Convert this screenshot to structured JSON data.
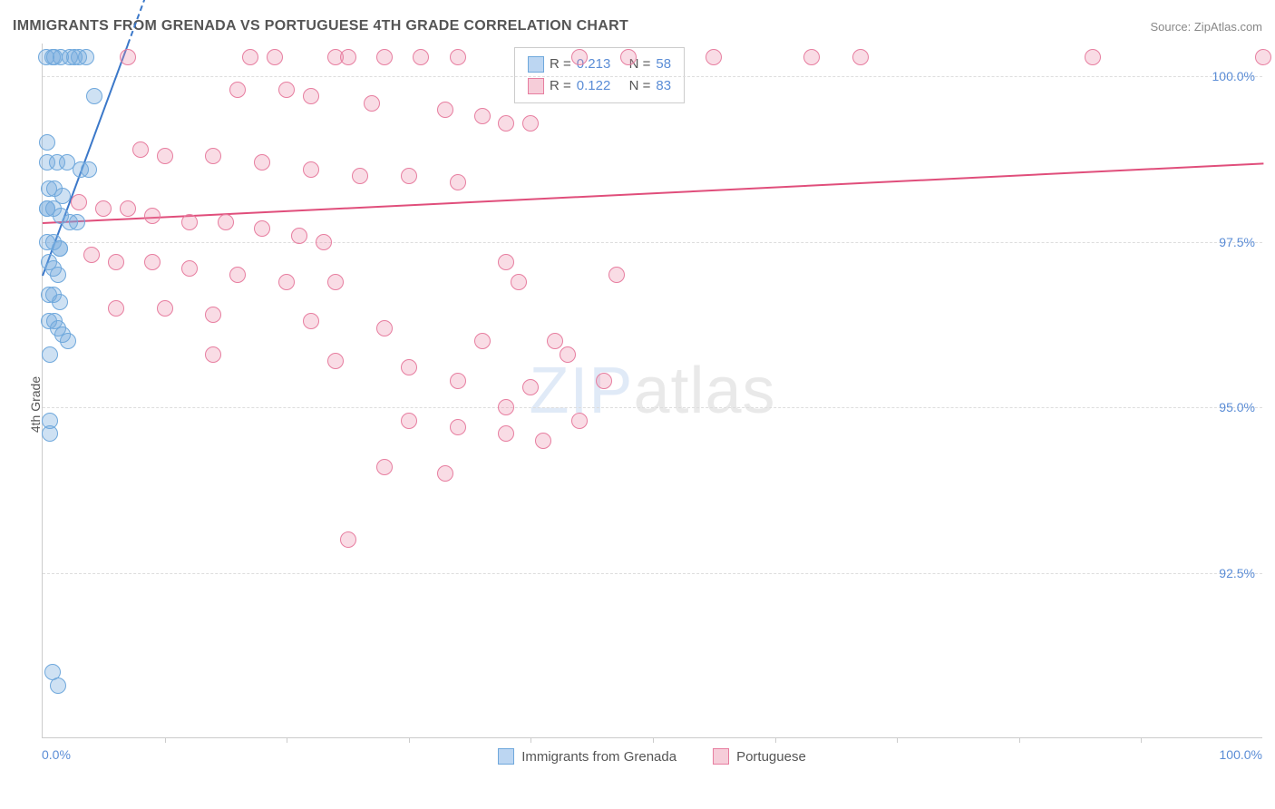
{
  "header": {
    "title": "IMMIGRANTS FROM GRENADA VS PORTUGUESE 4TH GRADE CORRELATION CHART",
    "source": "Source: ZipAtlas.com"
  },
  "chart": {
    "type": "scatter",
    "ylabel": "4th Grade",
    "xlim": [
      0,
      100
    ],
    "ylim": [
      90,
      100.5
    ],
    "yticks": [
      {
        "v": 92.5,
        "label": "92.5%"
      },
      {
        "v": 95.0,
        "label": "95.0%"
      },
      {
        "v": 97.5,
        "label": "97.5%"
      },
      {
        "v": 100.0,
        "label": "100.0%"
      }
    ],
    "xticks_minor": [
      10,
      20,
      30,
      40,
      50,
      60,
      70,
      80,
      90
    ],
    "xtick_labels": {
      "left": "0.0%",
      "right": "100.0%"
    },
    "grid_color": "#dddddd",
    "axis_color": "#cccccc",
    "background_color": "#ffffff",
    "marker_radius": 9,
    "marker_stroke_width": 1.5,
    "series": [
      {
        "name": "Immigrants from Grenada",
        "color_fill": "rgba(116,169,222,0.35)",
        "color_stroke": "#6fa8dc",
        "swatch_fill": "#bcd6f2",
        "swatch_stroke": "#6fa8dc",
        "R": "0.213",
        "N": "58",
        "trend": {
          "x0": 0,
          "y0": 97.0,
          "x1": 7,
          "y1": 100.5,
          "color": "#3b78c9",
          "dash_extend": true
        },
        "points": [
          [
            0.3,
            100.3
          ],
          [
            0.8,
            100.3
          ],
          [
            1.5,
            100.3
          ],
          [
            2.2,
            100.3
          ],
          [
            3.0,
            100.3
          ],
          [
            3.6,
            100.3
          ],
          [
            1.0,
            100.3
          ],
          [
            2.6,
            100.3
          ],
          [
            4.2,
            99.7
          ],
          [
            0.4,
            99.0
          ],
          [
            0.4,
            98.7
          ],
          [
            1.2,
            98.7
          ],
          [
            2.0,
            98.7
          ],
          [
            3.1,
            98.6
          ],
          [
            3.8,
            98.6
          ],
          [
            0.5,
            98.3
          ],
          [
            1.0,
            98.3
          ],
          [
            1.6,
            98.2
          ],
          [
            0.4,
            98.0
          ],
          [
            0.4,
            98.0
          ],
          [
            0.9,
            98.0
          ],
          [
            1.5,
            97.9
          ],
          [
            2.2,
            97.8
          ],
          [
            2.8,
            97.8
          ],
          [
            0.4,
            97.5
          ],
          [
            0.9,
            97.5
          ],
          [
            1.4,
            97.4
          ],
          [
            1.4,
            97.4
          ],
          [
            0.5,
            97.2
          ],
          [
            0.9,
            97.1
          ],
          [
            1.3,
            97.0
          ],
          [
            0.5,
            96.7
          ],
          [
            0.9,
            96.7
          ],
          [
            1.4,
            96.6
          ],
          [
            0.5,
            96.3
          ],
          [
            1.0,
            96.3
          ],
          [
            1.3,
            96.2
          ],
          [
            1.6,
            96.1
          ],
          [
            2.1,
            96.0
          ],
          [
            0.6,
            95.8
          ],
          [
            0.6,
            94.8
          ],
          [
            0.6,
            94.6
          ],
          [
            0.8,
            91.0
          ],
          [
            1.3,
            90.8
          ]
        ]
      },
      {
        "name": "Portuguese",
        "color_fill": "rgba(236,140,170,0.30)",
        "color_stroke": "#e77ea0",
        "swatch_fill": "#f6cdd9",
        "swatch_stroke": "#e77ea0",
        "R": "0.122",
        "N": "83",
        "trend": {
          "x0": 0,
          "y0": 97.8,
          "x1": 100,
          "y1": 98.7,
          "color": "#e04e7b",
          "dash_extend": false
        },
        "points": [
          [
            7,
            100.3
          ],
          [
            17,
            100.3
          ],
          [
            19,
            100.3
          ],
          [
            24,
            100.3
          ],
          [
            25,
            100.3
          ],
          [
            28,
            100.3
          ],
          [
            31,
            100.3
          ],
          [
            34,
            100.3
          ],
          [
            44,
            100.3
          ],
          [
            48,
            100.3
          ],
          [
            55,
            100.3
          ],
          [
            63,
            100.3
          ],
          [
            67,
            100.3
          ],
          [
            86,
            100.3
          ],
          [
            100,
            100.3
          ],
          [
            16,
            99.8
          ],
          [
            20,
            99.8
          ],
          [
            22,
            99.7
          ],
          [
            27,
            99.6
          ],
          [
            33,
            99.5
          ],
          [
            36,
            99.4
          ],
          [
            38,
            99.3
          ],
          [
            40,
            99.3
          ],
          [
            8,
            98.9
          ],
          [
            10,
            98.8
          ],
          [
            14,
            98.8
          ],
          [
            18,
            98.7
          ],
          [
            22,
            98.6
          ],
          [
            26,
            98.5
          ],
          [
            30,
            98.5
          ],
          [
            34,
            98.4
          ],
          [
            3,
            98.1
          ],
          [
            5,
            98.0
          ],
          [
            7,
            98.0
          ],
          [
            9,
            97.9
          ],
          [
            12,
            97.8
          ],
          [
            15,
            97.8
          ],
          [
            18,
            97.7
          ],
          [
            21,
            97.6
          ],
          [
            23,
            97.5
          ],
          [
            4,
            97.3
          ],
          [
            6,
            97.2
          ],
          [
            9,
            97.2
          ],
          [
            12,
            97.1
          ],
          [
            16,
            97.0
          ],
          [
            20,
            96.9
          ],
          [
            24,
            96.9
          ],
          [
            38,
            97.2
          ],
          [
            39,
            96.9
          ],
          [
            47,
            97.0
          ],
          [
            6,
            96.5
          ],
          [
            10,
            96.5
          ],
          [
            14,
            96.4
          ],
          [
            22,
            96.3
          ],
          [
            28,
            96.2
          ],
          [
            36,
            96.0
          ],
          [
            42,
            96.0
          ],
          [
            14,
            95.8
          ],
          [
            24,
            95.7
          ],
          [
            30,
            95.6
          ],
          [
            34,
            95.4
          ],
          [
            40,
            95.3
          ],
          [
            43,
            95.8
          ],
          [
            46,
            95.4
          ],
          [
            30,
            94.8
          ],
          [
            34,
            94.7
          ],
          [
            38,
            94.6
          ],
          [
            41,
            94.5
          ],
          [
            44,
            94.8
          ],
          [
            28,
            94.1
          ],
          [
            33,
            94.0
          ],
          [
            38,
            95.0
          ],
          [
            25,
            93.0
          ]
        ]
      }
    ],
    "legend": {
      "R_label": "R =",
      "N_label": "N ="
    },
    "watermark": {
      "strong": "ZIP",
      "thin": "atlas"
    }
  }
}
